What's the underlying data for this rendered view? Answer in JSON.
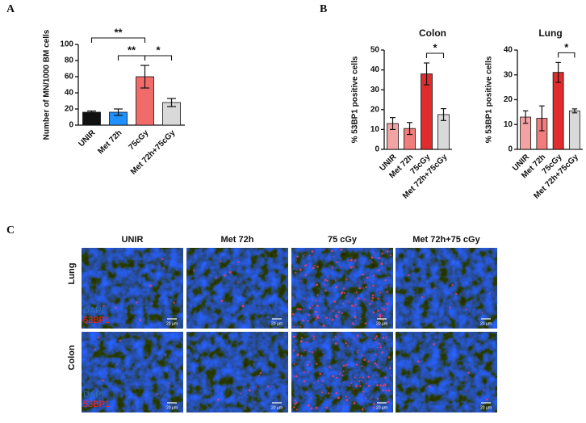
{
  "panels": {
    "a": "A",
    "b": "B",
    "c": "C"
  },
  "chart_data": [
    {
      "type": "bar",
      "ylabel": "Number of MN/1000 BM cells",
      "categories": [
        "UNIR",
        "Met 72h",
        "75cGy",
        "Met 72h+75cGy"
      ],
      "values": [
        16,
        16,
        60,
        28
      ],
      "errors": [
        1.5,
        4,
        14,
        5
      ],
      "colors": [
        "#111111",
        "#1e90ff",
        "#f26b6b",
        "#d9d9d9"
      ],
      "ylim": [
        0,
        100
      ],
      "yticks": [
        0,
        20,
        40,
        60,
        80,
        100
      ],
      "annotations": [
        {
          "label": "**",
          "between": [
            "UNIR",
            "75cGy"
          ]
        },
        {
          "label": "**",
          "between": [
            "Met 72h",
            "75cGy"
          ]
        },
        {
          "label": "*",
          "between": [
            "75cGy",
            "Met 72h+75cGy"
          ]
        }
      ]
    },
    {
      "type": "bar",
      "title": "Colon",
      "ylabel": "% 53BP1 positive cells",
      "categories": [
        "UNIR",
        "Met 72h",
        "75cGy",
        "Met 72h+75cGy"
      ],
      "values": [
        13,
        10.5,
        38,
        17.5
      ],
      "errors": [
        3,
        3,
        5.5,
        3
      ],
      "colors": [
        "#f4a3a3",
        "#f07c7c",
        "#e02c2c",
        "#d9d9d9"
      ],
      "ylim": [
        0,
        50
      ],
      "yticks": [
        0,
        10,
        20,
        30,
        40,
        50
      ],
      "annotations": [
        {
          "label": "*",
          "between": [
            "75cGy",
            "Met 72h+75cGy"
          ]
        }
      ]
    },
    {
      "type": "bar",
      "title": "Lung",
      "ylabel": "% 53BP1 positive cells",
      "categories": [
        "UNIR",
        "Met 72h",
        "75cGy",
        "Met 72h+75cGy"
      ],
      "values": [
        13,
        12.5,
        31,
        15.5
      ],
      "errors": [
        2.5,
        5,
        4,
        0.8
      ],
      "colors": [
        "#f4a3a3",
        "#f07c7c",
        "#e02c2c",
        "#d9d9d9"
      ],
      "ylim": [
        0,
        40
      ],
      "yticks": [
        0,
        10,
        20,
        30,
        40
      ],
      "annotations": [
        {
          "label": "*",
          "between": [
            "75cGy",
            "Met 72h+75cGy"
          ]
        }
      ]
    }
  ],
  "micrographs": {
    "columns": [
      "UNIR",
      "Met 72h",
      "75 cGy",
      "Met 72h+75 cGy"
    ],
    "rows": [
      "Lung",
      "Colon"
    ],
    "stains": [
      "DAPI",
      "53BP1"
    ],
    "scale_bar": "20 µm"
  }
}
